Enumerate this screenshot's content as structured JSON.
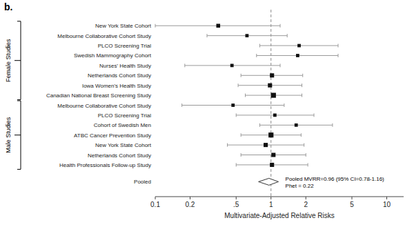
{
  "chart_data": {
    "type": "forest",
    "title": "b.",
    "xlabel": "Multivariate-Adjusted Relative Risks",
    "categories": [
      "New York State Cohort",
      "Melbourne Collaborative Cohort Study",
      "PLCO Screening Trial",
      "Swedish Mammography Cohort",
      "Nurses' Health Study",
      "Netherlands Cohort Study",
      "Iowa Women's Health Study",
      "Canadian National Breast Screening Study",
      "Melbourne Collaborative Cohort Study",
      "PLCO Screening Trial",
      "Cohort of Swedish Men",
      "ATBC Cancer Prevention Study",
      "New York State Cohort",
      "Netherlands Cohort Study",
      "Health Professionals Follow-up Study",
      "Pooled"
    ],
    "values": [
      0.35,
      0.62,
      1.75,
      1.7,
      0.46,
      1.02,
      0.98,
      1.05,
      0.47,
      1.08,
      1.65,
      1.0,
      0.9,
      1.05,
      1.02,
      0.96
    ],
    "ci_low": [
      0.1,
      0.28,
      0.8,
      0.75,
      0.18,
      0.55,
      0.52,
      0.6,
      0.17,
      0.5,
      0.8,
      0.55,
      0.42,
      0.55,
      0.5,
      0.78
    ],
    "ci_high": [
      1.2,
      1.38,
      3.8,
      3.8,
      1.2,
      1.88,
      1.85,
      1.85,
      1.3,
      2.35,
      3.4,
      1.82,
      1.93,
      2.0,
      2.08,
      1.16
    ],
    "box_sizes": [
      0.35,
      0.3,
      0.3,
      0.3,
      0.3,
      0.38,
      0.38,
      0.45,
      0.3,
      0.3,
      0.3,
      0.45,
      0.38,
      0.38,
      0.38,
      0.0
    ],
    "groups": [
      {
        "label": "Female Studies",
        "range": [
          0,
          7
        ]
      },
      {
        "label": "Male Studies",
        "range": [
          8,
          14
        ]
      }
    ],
    "annotations": [
      "Pooled MVRR=0.96 (95% CI=0.78-1.16)",
      "Phet = 0.22"
    ],
    "ref_line": 1,
    "color": "#111111",
    "log": "x",
    "xlim": [
      0.1,
      14.0
    ],
    "xticks": [
      0.1,
      0.2,
      {
        "value": 0.5,
        "label": ".5"
      },
      1,
      2,
      5,
      10
    ],
    "grid": false
  }
}
